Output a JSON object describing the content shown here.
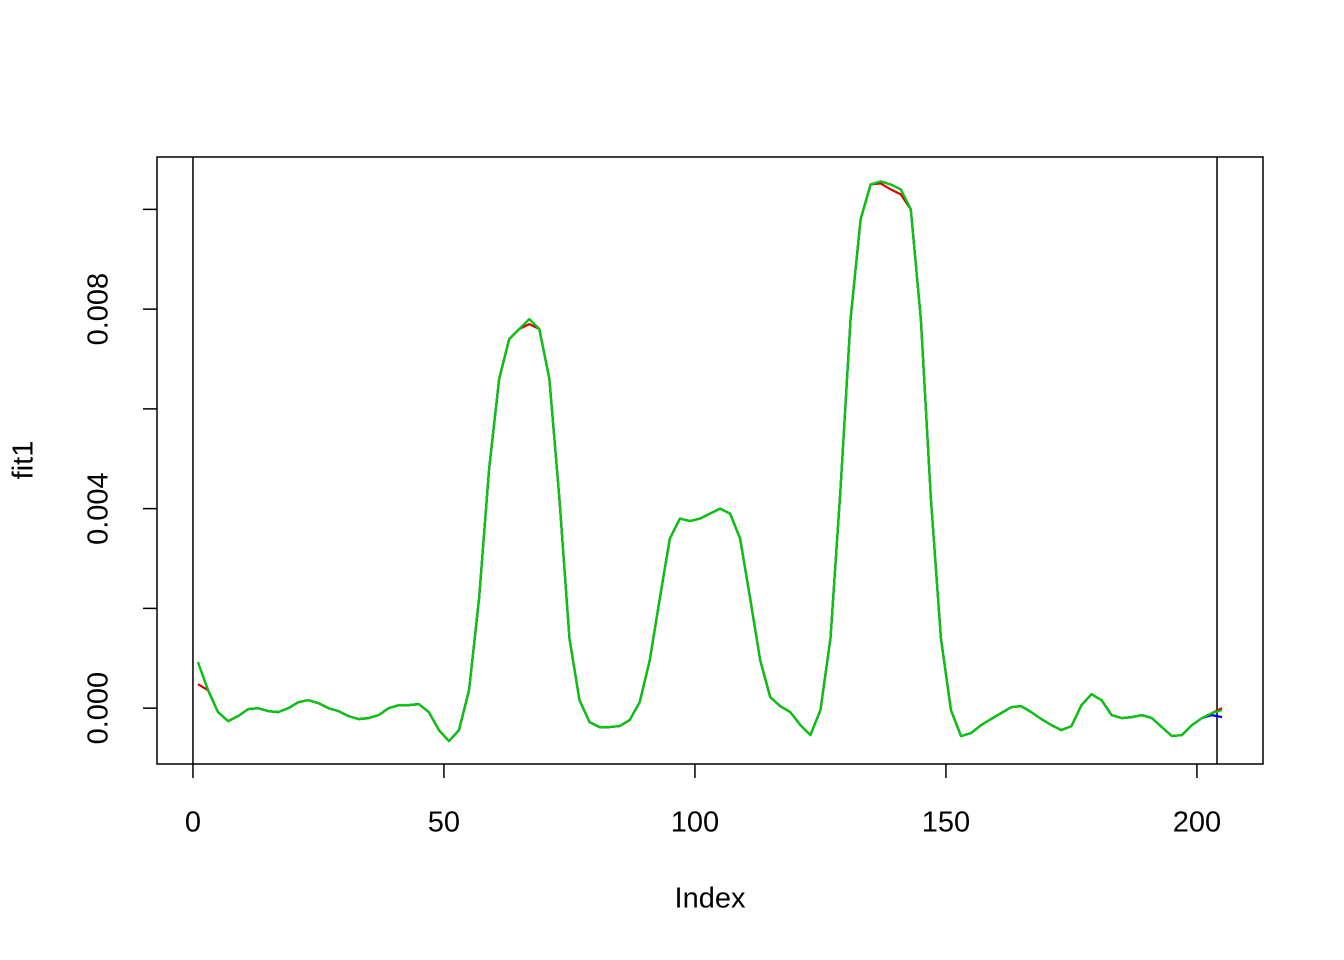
{
  "chart_data": {
    "type": "line",
    "x_label": "Index",
    "y_label": "fit1",
    "x": [
      1,
      3,
      5,
      7,
      9,
      11,
      13,
      15,
      17,
      19,
      21,
      23,
      25,
      27,
      29,
      31,
      33,
      35,
      37,
      39,
      41,
      43,
      45,
      47,
      49,
      51,
      53,
      55,
      57,
      59,
      61,
      63,
      65,
      67,
      69,
      71,
      73,
      75,
      77,
      79,
      81,
      83,
      85,
      87,
      89,
      91,
      93,
      95,
      97,
      99,
      101,
      103,
      105,
      107,
      109,
      111,
      113,
      115,
      117,
      119,
      121,
      123,
      125,
      127,
      129,
      131,
      133,
      135,
      137,
      139,
      141,
      143,
      145,
      147,
      149,
      151,
      153,
      155,
      157,
      159,
      161,
      163,
      165,
      167,
      169,
      171,
      173,
      175,
      177,
      179,
      181,
      183,
      185,
      187,
      189,
      191,
      193,
      195,
      197,
      199,
      201,
      203,
      205
    ],
    "series": [
      {
        "color": "#df0000",
        "values": [
          0.00048,
          0.00036,
          -8e-05,
          -0.00026,
          -0.00016,
          -2e-05,
          0,
          -6e-05,
          -8e-05,
          0,
          0.00012,
          0.00016,
          0.0001,
          0,
          -6e-05,
          -0.00016,
          -0.00022,
          -0.0002,
          -0.00014,
          0,
          6e-05,
          6e-05,
          8e-05,
          -8e-05,
          -0.00044,
          -0.00066,
          -0.00044,
          0.00036,
          0.0022,
          0.0048,
          0.0066,
          0.0074,
          0.0076,
          0.0077,
          0.0076,
          0.0066,
          0.0042,
          0.0014,
          0.00016,
          -0.00028,
          -0.00038,
          -0.00038,
          -0.00036,
          -0.00024,
          0.00012,
          0.00096,
          0.0022,
          0.0034,
          0.0038,
          0.00375,
          0.0038,
          0.0039,
          0.004,
          0.0039,
          0.0034,
          0.0022,
          0.00096,
          0.00022,
          4e-05,
          -8e-05,
          -0.00034,
          -0.00054,
          -4e-05,
          0.0014,
          0.0044,
          0.0078,
          0.0098,
          0.0105,
          0.01052,
          0.0104,
          0.0103,
          0.01,
          0.0078,
          0.0042,
          0.0014,
          -4e-05,
          -0.00056,
          -0.0005,
          -0.00034,
          -0.00022,
          -0.0001,
          2e-05,
          4e-05,
          -8e-05,
          -0.00022,
          -0.00034,
          -0.00044,
          -0.00036,
          6e-05,
          0.00028,
          0.00016,
          -0.00014,
          -0.0002,
          -0.00018,
          -0.00014,
          -0.0002,
          -0.00038,
          -0.00056,
          -0.00054,
          -0.00034,
          -0.0002,
          -0.0001,
          0
        ]
      },
      {
        "color": "#0000ff",
        "values": [
          0.00092,
          0.00036,
          -8e-05,
          -0.00026,
          -0.00016,
          -2e-05,
          0,
          -6e-05,
          -8e-05,
          0,
          0.00012,
          0.00016,
          0.0001,
          0,
          -6e-05,
          -0.00016,
          -0.00022,
          -0.0002,
          -0.00014,
          0,
          6e-05,
          6e-05,
          8e-05,
          -8e-05,
          -0.00044,
          -0.00066,
          -0.00044,
          0.00036,
          0.0022,
          0.0048,
          0.0066,
          0.0074,
          0.0076,
          0.0078,
          0.0076,
          0.0066,
          0.0042,
          0.0014,
          0.00016,
          -0.00028,
          -0.00038,
          -0.00038,
          -0.00036,
          -0.00024,
          0.00012,
          0.00096,
          0.0022,
          0.0034,
          0.0038,
          0.00375,
          0.0038,
          0.0039,
          0.004,
          0.0039,
          0.0034,
          0.0022,
          0.00096,
          0.00022,
          4e-05,
          -8e-05,
          -0.00034,
          -0.00054,
          -4e-05,
          0.0014,
          0.0044,
          0.0078,
          0.0098,
          0.0105,
          0.01056,
          0.0105,
          0.0104,
          0.01,
          0.0078,
          0.0042,
          0.0014,
          -4e-05,
          -0.00056,
          -0.0005,
          -0.00034,
          -0.00022,
          -0.0001,
          2e-05,
          4e-05,
          -8e-05,
          -0.00022,
          -0.00034,
          -0.00044,
          -0.00036,
          6e-05,
          0.00028,
          0.00016,
          -0.00014,
          -0.0002,
          -0.00018,
          -0.00014,
          -0.0002,
          -0.00038,
          -0.00056,
          -0.00054,
          -0.00034,
          -0.0002,
          -0.00014,
          -0.00018
        ]
      },
      {
        "color": "#00cd00",
        "values": [
          0.00092,
          0.00036,
          -8e-05,
          -0.00026,
          -0.00016,
          -2e-05,
          0,
          -6e-05,
          -8e-05,
          0,
          0.00012,
          0.00016,
          0.0001,
          0,
          -6e-05,
          -0.00016,
          -0.00022,
          -0.0002,
          -0.00014,
          0,
          6e-05,
          6e-05,
          8e-05,
          -8e-05,
          -0.00044,
          -0.00066,
          -0.00044,
          0.00036,
          0.0022,
          0.0048,
          0.0066,
          0.0074,
          0.0076,
          0.0078,
          0.0076,
          0.0066,
          0.0042,
          0.0014,
          0.00016,
          -0.00028,
          -0.00038,
          -0.00038,
          -0.00036,
          -0.00024,
          0.00012,
          0.00096,
          0.0022,
          0.0034,
          0.0038,
          0.00375,
          0.0038,
          0.0039,
          0.004,
          0.0039,
          0.0034,
          0.0022,
          0.00096,
          0.00022,
          4e-05,
          -8e-05,
          -0.00034,
          -0.00054,
          -4e-05,
          0.0014,
          0.0044,
          0.0078,
          0.0098,
          0.0105,
          0.01056,
          0.0105,
          0.0104,
          0.01,
          0.0078,
          0.0042,
          0.0014,
          -4e-05,
          -0.00056,
          -0.0005,
          -0.00034,
          -0.00022,
          -0.0001,
          2e-05,
          4e-05,
          -8e-05,
          -0.00022,
          -0.00034,
          -0.00044,
          -0.00036,
          6e-05,
          0.00028,
          0.00016,
          -0.00014,
          -0.0002,
          -0.00018,
          -0.00014,
          -0.0002,
          -0.00038,
          -0.00056,
          -0.00054,
          -0.00034,
          -0.0002,
          -0.0001,
          -4e-05
        ]
      }
    ],
    "vlines": [
      0,
      204
    ],
    "vline_color": "#000000",
    "xlim": [
      -7.16,
      213.16
    ],
    "xticks": [
      0,
      50,
      100,
      150,
      200
    ],
    "ylim": [
      -0.00112,
      0.01105
    ],
    "yticks": [
      {
        "value": 0,
        "label": "0.000"
      },
      {
        "value": 0.004,
        "label": "0.004"
      },
      {
        "value": 0.008,
        "label": "0.008"
      }
    ],
    "yticks_unlabeled": [
      0.002,
      0.006,
      0.01
    ]
  }
}
